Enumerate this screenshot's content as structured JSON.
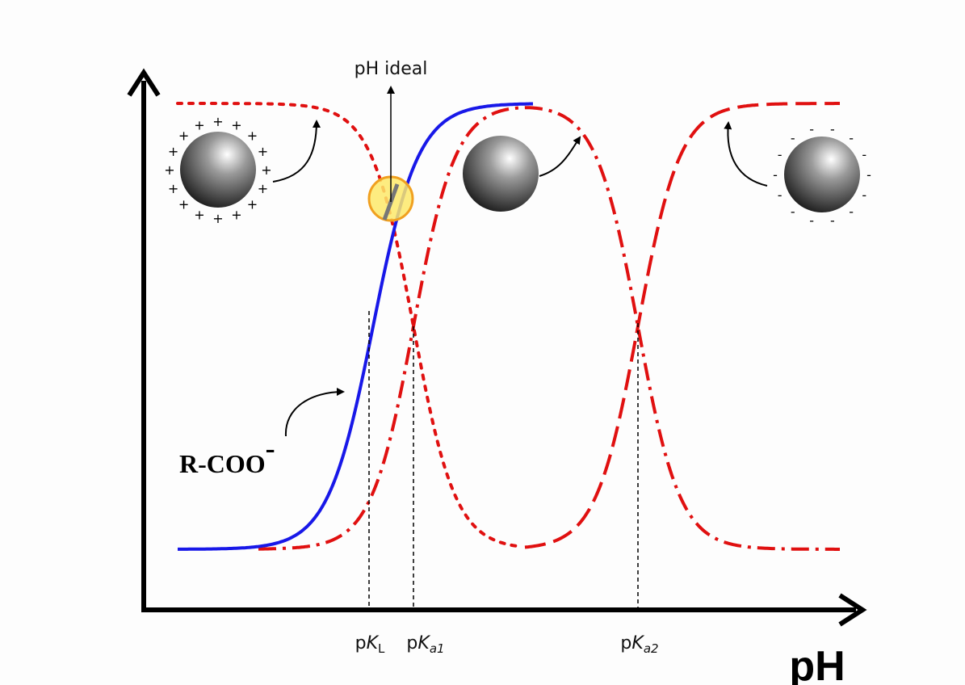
{
  "pH_ideal": "pH ideal",
  "carboxylate": {
    "group": "R-COO",
    "charge": "-"
  },
  "charges": {
    "positive": "+",
    "negative": "-"
  },
  "markers": [
    {
      "prefix": "p",
      "symbol": "K",
      "subscript": "L"
    },
    {
      "prefix": "p",
      "symbol": "K",
      "subscript": "a1"
    },
    {
      "prefix": "p",
      "symbol": "K",
      "subscript": "a2"
    }
  ],
  "axis_label": "pH"
}
